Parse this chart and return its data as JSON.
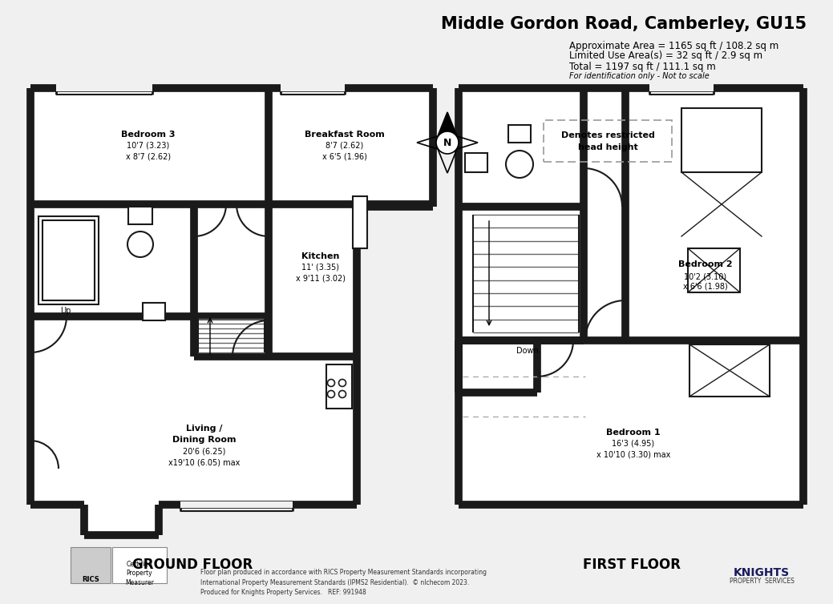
{
  "title": "Middle Gordon Road, Camberley, GU15",
  "area_line1": "Approximate Area = 1165 sq ft / 108.2 sq m",
  "area_line2": "Limited Use Area(s) = 32 sq ft / 2.9 sq m",
  "area_line3": "Total = 1197 sq ft / 111.1 sq m",
  "area_line4": "For identification only - Not to scale",
  "ground_floor_label": "GROUND FLOOR",
  "first_floor_label": "FIRST FLOOR",
  "footer_text": "Floor plan produced in accordance with RICS Property Measurement Standards incorporating\nInternational Property Measurement Standards (IPMS2 Residential).  © nlchecom 2023.\nProduced for Knights Property Services.   REF: 991948",
  "bg_color": "#f0f0f0",
  "wall_color": "#1a1a1a",
  "room_fill": "#ffffff",
  "dashed_color": "#aaaaaa"
}
